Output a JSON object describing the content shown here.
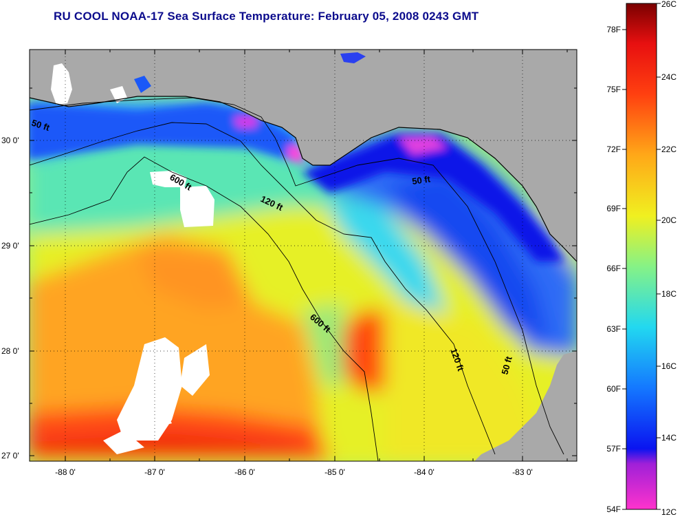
{
  "title": "RU COOL  NOAA-17  Sea Surface Temperature:  February 05, 2008 0243 GMT",
  "map": {
    "land_color": "#a9a9a9",
    "lat_ticks": [
      "30 0'",
      "29 0'",
      "28 0'",
      "27 0'"
    ],
    "lon_ticks": [
      "-88 0'",
      "-87 0'",
      "-86 0'",
      "-85 0'",
      "-84 0'",
      "-83 0'"
    ],
    "contour_labels": {
      "c50_west": "50 ft",
      "c50_east": "50 ft",
      "c50_south": "50 ft",
      "c120_north": "120 ft",
      "c120_south": "120 ft",
      "c600_north": "600 ft",
      "c600_south": "600 ft"
    }
  },
  "colorbar": {
    "fahrenheit_labels": [
      "78F",
      "75F",
      "72F",
      "69F",
      "66F",
      "63F",
      "60F",
      "57F",
      "54F"
    ],
    "celsius_labels": [
      "26C",
      "24C",
      "22C",
      "20C",
      "18C",
      "16C",
      "14C",
      "12C"
    ],
    "colors": [
      "#ff33cc",
      "#7a1bd6",
      "#0a14f0",
      "#18a0ff",
      "#33e8e8",
      "#86f286",
      "#f0f020",
      "#ffa818",
      "#ff4010",
      "#ee1010",
      "#8b0000"
    ]
  }
}
